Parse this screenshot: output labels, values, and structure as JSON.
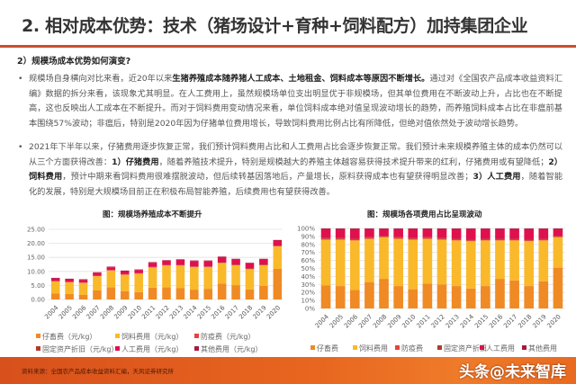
{
  "header": {
    "title": "2. 相对成本优势：技术（猪场设计+育种+饲料配方）加持集团企业"
  },
  "section": {
    "subheading": "2）规模场成本优势如何演变?"
  },
  "bullets": [
    {
      "marker": "•",
      "parts": [
        {
          "text": "规模场自身横向对比来看，近20年以来",
          "bold": false
        },
        {
          "text": "生猪养殖成本随养猪人工成本、土地租金、饲料成本等原因不断增长。",
          "bold": true
        },
        {
          "text": "通过对《全国农产品成本收益资料汇编》数据的拆分来看，该现象尤其明显。在人工费用上，虽然规模场单位支出明显优于非规模场，但其单位费用在不断波动上升，占比也在不断提高，这也反映出人工成本在不断提升。而对于饲料费用变动情况来看，单位饲料成本绝对值呈现波动增长的趋势，而养殖饲料成本占比在非瘟前基本围绕57%波动；非瘟后，特别是2020年因为仔猪单位费用增长，导致饲料费用比例占比有所降低，但绝对值依然处于波动增长趋势。",
          "bold": false
        }
      ]
    },
    {
      "marker": "•",
      "parts": [
        {
          "text": "2021年下半年以来，仔猪费用逐步恢复正常，我们预计饲料费用占比和人工费用占比会逐步恢复正常。我们预计未来规模养殖主体的成本仍然可以从三个方面获得改善：",
          "bold": false
        },
        {
          "text": "1）仔猪费用",
          "bold": true
        },
        {
          "text": "，随着养殖技术提升，特别是规模越大的养殖主体越容易获得技术提升带来的红利，仔猪费用或有望降低；",
          "bold": false
        },
        {
          "text": "2）饲料费用",
          "bold": true
        },
        {
          "text": "，预计中期来看饲料费用很难摆脱波动，但后续转基因落地后，产量增长，原料获得成本也有望获得明显改善；",
          "bold": false
        },
        {
          "text": "3）人工费用",
          "bold": true
        },
        {
          "text": "，随着智能化的发展，特别是大规模场目前正在积极布局智能养殖，后续费用也有望获得改善。",
          "bold": false
        }
      ]
    }
  ],
  "colors": {
    "accent_rule": "#c9502c",
    "piglet": "#f08a24",
    "feed": "#f9b92a",
    "epidemic": "#e8413a",
    "depreciation": "#b03a2e",
    "labor": "#e0104e",
    "other": "#a8183e"
  },
  "chart_data": [
    {
      "type": "bar",
      "stacked": true,
      "title": "图：规模场养殖成本不断提升",
      "xlabel": "",
      "ylabel": "",
      "ylim": [
        0,
        25
      ],
      "yticks": [
        "0.00",
        "5.00",
        "10.00",
        "15.00",
        "20.00",
        "25.00"
      ],
      "grid": true,
      "legend_position": "bottom",
      "categories": [
        "2004",
        "2005",
        "2006",
        "2007",
        "2008",
        "2009",
        "2010",
        "2011",
        "2012",
        "2013",
        "2014",
        "2015",
        "2016",
        "2017",
        "2018",
        "2019",
        "2020"
      ],
      "series": [
        {
          "name": "仔畜费（元/kg）",
          "color_key": "piglet",
          "values": [
            2.1,
            2.0,
            1.7,
            3.2,
            4.3,
            2.9,
            2.6,
            4.2,
            4.3,
            4.0,
            3.5,
            3.8,
            5.7,
            5.1,
            3.6,
            4.9,
            10.9
          ]
        },
        {
          "name": "饲料费用（元/kg）",
          "color_key": "feed",
          "values": [
            4.3,
            4.1,
            4.2,
            5.1,
            6.0,
            5.9,
            6.6,
            7.2,
            7.8,
            8.1,
            8.0,
            7.7,
            7.3,
            7.1,
            7.2,
            7.3,
            8.0
          ]
        },
        {
          "name": "防疫费（元/kg）",
          "color_key": "epidemic",
          "values": [
            0.1,
            0.1,
            0.1,
            0.1,
            0.1,
            0.1,
            0.1,
            0.1,
            0.1,
            0.1,
            0.1,
            0.1,
            0.1,
            0.1,
            0.1,
            0.1,
            0.1
          ]
        },
        {
          "name": "固定资产折旧（元/kg）",
          "color_key": "depreciation",
          "values": [
            0.1,
            0.1,
            0.1,
            0.1,
            0.1,
            0.1,
            0.1,
            0.1,
            0.1,
            0.1,
            0.2,
            0.2,
            0.2,
            0.2,
            0.2,
            0.2,
            0.2
          ]
        },
        {
          "name": "人工费用（元/kg）",
          "color_key": "labor",
          "values": [
            0.9,
            0.9,
            0.9,
            1.0,
            1.0,
            1.1,
            1.1,
            1.5,
            1.5,
            1.8,
            1.9,
            1.9,
            1.8,
            1.8,
            1.8,
            1.8,
            1.8
          ]
        },
        {
          "name": "其他费用（元/kg）",
          "color_key": "other",
          "values": [
            0.2,
            0.2,
            0.2,
            0.2,
            0.2,
            0.2,
            0.2,
            0.2,
            0.2,
            0.2,
            0.2,
            0.2,
            0.2,
            0.2,
            0.2,
            0.2,
            0.2
          ]
        }
      ]
    },
    {
      "type": "bar",
      "stacked": true,
      "percent": true,
      "title": "图：规模场各项费用占比呈现波动",
      "xlabel": "",
      "ylabel": "",
      "ylim": [
        0,
        100
      ],
      "yticks": [
        "0%",
        "10%",
        "20%",
        "30%",
        "40%",
        "50%",
        "60%",
        "70%",
        "80%",
        "90%",
        "100%"
      ],
      "grid": true,
      "legend_position": "bottom",
      "categories": [
        "2004",
        "2005",
        "2006",
        "2007",
        "2008",
        "2009",
        "2010",
        "2011",
        "2012",
        "2013",
        "2014",
        "2015",
        "2016",
        "2017",
        "2018",
        "2019",
        "2020"
      ],
      "series": [
        {
          "name": "仔畜费",
          "color_key": "piglet",
          "values": [
            29,
            28,
            23,
            33,
            37,
            28,
            24,
            31,
            30,
            28,
            25,
            28,
            37,
            35,
            28,
            34,
            51
          ]
        },
        {
          "name": "饲料费用",
          "color_key": "feed",
          "values": [
            57,
            58,
            62,
            54,
            52,
            59,
            62,
            56,
            56,
            57,
            59,
            57,
            48,
            50,
            56,
            51,
            38
          ]
        },
        {
          "name": "防疫费",
          "color_key": "epidemic",
          "values": [
            1,
            1,
            1,
            1,
            1,
            1,
            1,
            1,
            1,
            1,
            1,
            1,
            1,
            1,
            1,
            1,
            1
          ]
        },
        {
          "name": "固定资产折旧",
          "color_key": "depreciation",
          "values": [
            1,
            1,
            1,
            1,
            1,
            1,
            1,
            1,
            1,
            1,
            1,
            1,
            1,
            1,
            1,
            1,
            1
          ]
        },
        {
          "name": "人工费用",
          "color_key": "labor",
          "values": [
            11,
            11,
            12,
            10,
            8,
            10,
            11,
            10,
            11,
            12,
            13,
            12,
            12,
            12,
            13,
            12,
            8
          ]
        },
        {
          "name": "其他费用",
          "color_key": "other",
          "values": [
            1,
            1,
            1,
            1,
            1,
            1,
            1,
            1,
            1,
            1,
            1,
            1,
            1,
            1,
            1,
            1,
            1
          ]
        }
      ]
    }
  ],
  "footer": {
    "source": "资料来源：全国农产品成本收益资料汇编，天风证券研究所",
    "watermark": "头条@未来智库"
  }
}
